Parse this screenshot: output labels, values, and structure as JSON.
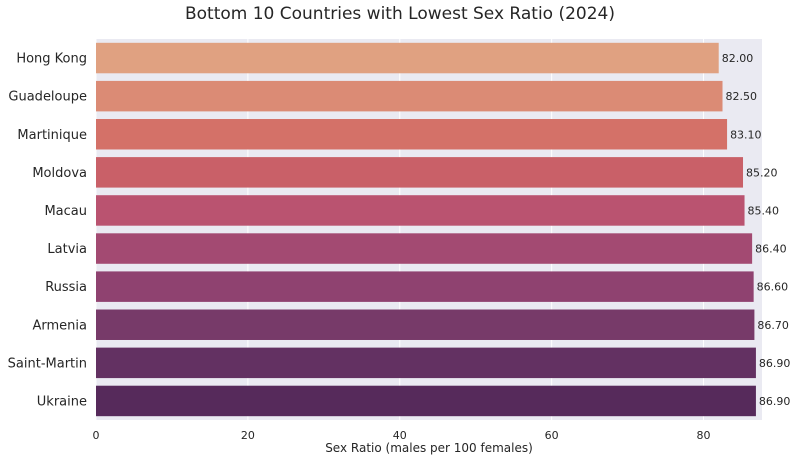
{
  "chart_data": {
    "type": "bar",
    "orientation": "horizontal",
    "title": "Bottom 10 Countries with Lowest Sex Ratio (2024)",
    "xlabel": "Sex Ratio (males per 100 females)",
    "ylabel": "",
    "xlim": [
      0,
      87.7
    ],
    "xticks": [
      0,
      20,
      40,
      60,
      80
    ],
    "grid": true,
    "background": "#eaeaf2",
    "categories": [
      "Hong Kong",
      "Guadeloupe",
      "Martinique",
      "Moldova",
      "Macau",
      "Latvia",
      "Russia",
      "Armenia",
      "Saint-Martin",
      "Ukraine"
    ],
    "values": [
      82.0,
      82.5,
      83.1,
      85.2,
      85.4,
      86.4,
      86.6,
      86.7,
      86.9,
      86.9
    ],
    "value_labels": [
      "82.00",
      "82.50",
      "83.10",
      "85.20",
      "85.40",
      "86.40",
      "86.60",
      "86.70",
      "86.90",
      "86.90"
    ],
    "colors": [
      "#e0a181",
      "#db8b75",
      "#d47168",
      "#c96068",
      "#ba5370",
      "#a34a72",
      "#8f4270",
      "#773a69",
      "#633162",
      "#562a5b"
    ]
  }
}
